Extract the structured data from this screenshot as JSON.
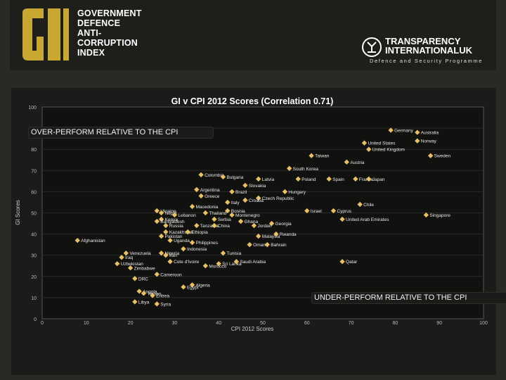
{
  "header": {
    "logo_initials": "GI",
    "logo_lines": [
      "GOVERNMENT",
      "DEFENCE",
      "ANTI-",
      "CORRUPTION",
      "INDEX"
    ],
    "ti_line1": "TRANSPARENCY",
    "ti_line2": "INTERNATIONAL",
    "ti_line2_suffix": "UK",
    "ti_sub": "Defence and Security Programme",
    "colors": {
      "logo_gold": "#c8a830",
      "accent": "#d4b040"
    }
  },
  "annotations": {
    "over": "OVER-PERFORM RELATIVE TO THE CPI",
    "under": "UNDER-PERFORM RELATIVE TO THE CPI"
  },
  "chart_data": {
    "type": "scatter",
    "title": "GI v CPI 2012 Scores (Correlation 0.71)",
    "xlabel": "CPI 2012 Scores",
    "ylabel": "GI Scores",
    "xlim": [
      0,
      100
    ],
    "ylim": [
      0,
      100
    ],
    "xticks": [
      0,
      10,
      20,
      30,
      40,
      50,
      60,
      70,
      80,
      90,
      100
    ],
    "yticks": [
      0,
      10,
      20,
      30,
      40,
      50,
      60,
      70,
      80,
      90,
      100
    ],
    "point_color": "#e8c060",
    "points": [
      {
        "label": "Germany",
        "x": 79,
        "y": 89
      },
      {
        "label": "Australia",
        "x": 85,
        "y": 88
      },
      {
        "label": "United States",
        "x": 73,
        "y": 83
      },
      {
        "label": "Norway",
        "x": 85,
        "y": 84
      },
      {
        "label": "United Kingdom",
        "x": 74,
        "y": 80
      },
      {
        "label": "Sweden",
        "x": 88,
        "y": 77
      },
      {
        "label": "Taiwan",
        "x": 61,
        "y": 77
      },
      {
        "label": "Austria",
        "x": 69,
        "y": 74
      },
      {
        "label": "South Korea",
        "x": 56,
        "y": 71
      },
      {
        "label": "Colombia",
        "x": 36,
        "y": 68
      },
      {
        "label": "Bulgaria",
        "x": 41,
        "y": 67
      },
      {
        "label": "Latvia",
        "x": 49,
        "y": 66
      },
      {
        "label": "Poland",
        "x": 58,
        "y": 66
      },
      {
        "label": "Spain",
        "x": 65,
        "y": 66
      },
      {
        "label": "France",
        "x": 71,
        "y": 66
      },
      {
        "label": "Japan",
        "x": 74,
        "y": 66
      },
      {
        "label": "Slovakia",
        "x": 46,
        "y": 63
      },
      {
        "label": "Argentina",
        "x": 35,
        "y": 61
      },
      {
        "label": "Brazil",
        "x": 43,
        "y": 60
      },
      {
        "label": "Hungary",
        "x": 55,
        "y": 60
      },
      {
        "label": "Greece",
        "x": 36,
        "y": 58
      },
      {
        "label": "Czech Republic",
        "x": 49,
        "y": 57
      },
      {
        "label": "Italy",
        "x": 42,
        "y": 55
      },
      {
        "label": "Croatia",
        "x": 46,
        "y": 56
      },
      {
        "label": "Chile",
        "x": 72,
        "y": 54
      },
      {
        "label": "Macedonia",
        "x": 34,
        "y": 53
      },
      {
        "label": "Israel",
        "x": 60,
        "y": 51
      },
      {
        "label": "Cyprus",
        "x": 66,
        "y": 51
      },
      {
        "label": "Ukraine",
        "x": 26,
        "y": 51
      },
      {
        "label": "Nepal",
        "x": 27,
        "y": 50
      },
      {
        "label": "Thailand",
        "x": 37,
        "y": 50
      },
      {
        "label": "Bosnia",
        "x": 42,
        "y": 51
      },
      {
        "label": "Montenegro",
        "x": 43,
        "y": 49
      },
      {
        "label": "Lebanon",
        "x": 30,
        "y": 49
      },
      {
        "label": "Kenya",
        "x": 27,
        "y": 47
      },
      {
        "label": "Singapore",
        "x": 87,
        "y": 49
      },
      {
        "label": "Bangladesh",
        "x": 26,
        "y": 46
      },
      {
        "label": "Serbia",
        "x": 39,
        "y": 47
      },
      {
        "label": "United Arab Emirates",
        "x": 68,
        "y": 47
      },
      {
        "label": "Ghana",
        "x": 45,
        "y": 46
      },
      {
        "label": "Georgia",
        "x": 52,
        "y": 45
      },
      {
        "label": "Russia",
        "x": 28,
        "y": 44
      },
      {
        "label": "Tanzania",
        "x": 35,
        "y": 44
      },
      {
        "label": "China",
        "x": 39,
        "y": 44
      },
      {
        "label": "Jordan",
        "x": 48,
        "y": 44
      },
      {
        "label": "Kazakhstan",
        "x": 28,
        "y": 41
      },
      {
        "label": "Ethiopia",
        "x": 33,
        "y": 41
      },
      {
        "label": "Pakistan",
        "x": 27,
        "y": 39
      },
      {
        "label": "Rwanda",
        "x": 53,
        "y": 40
      },
      {
        "label": "Malaysia",
        "x": 49,
        "y": 39
      },
      {
        "label": "Afghanistan",
        "x": 8,
        "y": 37
      },
      {
        "label": "Uganda",
        "x": 29,
        "y": 37
      },
      {
        "label": "Philippines",
        "x": 34,
        "y": 36
      },
      {
        "label": "Oman",
        "x": 47,
        "y": 35
      },
      {
        "label": "Bahrain",
        "x": 51,
        "y": 35
      },
      {
        "label": "Indonesia",
        "x": 32,
        "y": 33
      },
      {
        "label": "Nigeria",
        "x": 27,
        "y": 31
      },
      {
        "label": "Iran",
        "x": 28,
        "y": 30
      },
      {
        "label": "Venezuela",
        "x": 19,
        "y": 31
      },
      {
        "label": "Tunisia",
        "x": 41,
        "y": 31
      },
      {
        "label": "Iraq",
        "x": 18,
        "y": 29
      },
      {
        "label": "Cote d'Ivoire",
        "x": 29,
        "y": 27
      },
      {
        "label": "Sri Lanka",
        "x": 40,
        "y": 26
      },
      {
        "label": "Saudi Arabia",
        "x": 44,
        "y": 27
      },
      {
        "label": "Qatar",
        "x": 68,
        "y": 27
      },
      {
        "label": "Uzbekistan",
        "x": 17,
        "y": 26
      },
      {
        "label": "Zimbabwe",
        "x": 20,
        "y": 24
      },
      {
        "label": "Morocco",
        "x": 37,
        "y": 25
      },
      {
        "label": "Cameroon",
        "x": 26,
        "y": 21
      },
      {
        "label": "DRC",
        "x": 21,
        "y": 19
      },
      {
        "label": "Algeria",
        "x": 34,
        "y": 16
      },
      {
        "label": "Egypt",
        "x": 32,
        "y": 15
      },
      {
        "label": "Angola",
        "x": 22,
        "y": 13
      },
      {
        "label": "Yemen",
        "x": 23,
        "y": 12
      },
      {
        "label": "Eritrea",
        "x": 25,
        "y": 11
      },
      {
        "label": "Libya",
        "x": 21,
        "y": 8
      },
      {
        "label": "Syria",
        "x": 26,
        "y": 7
      }
    ]
  }
}
